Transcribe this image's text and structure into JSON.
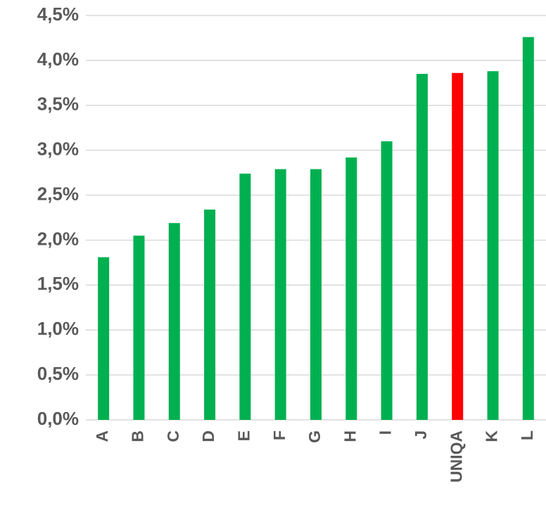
{
  "chart_data": {
    "type": "bar",
    "categories": [
      "A",
      "B",
      "C",
      "D",
      "E",
      "F",
      "G",
      "H",
      "I",
      "J",
      "UNIQA",
      "K",
      "L"
    ],
    "values": [
      1.81,
      2.05,
      2.19,
      2.34,
      2.74,
      2.79,
      2.79,
      2.92,
      3.1,
      3.85,
      3.86,
      3.88,
      4.26
    ],
    "colors": [
      "#00b050",
      "#00b050",
      "#00b050",
      "#00b050",
      "#00b050",
      "#00b050",
      "#00b050",
      "#00b050",
      "#00b050",
      "#00b050",
      "#ff0000",
      "#00b050",
      "#00b050"
    ],
    "ylim": [
      0,
      4.5
    ],
    "yticks": [
      {
        "value": 0,
        "label": "0,0%"
      },
      {
        "value": 0.5,
        "label": "0,5%"
      },
      {
        "value": 1,
        "label": "1,0%"
      },
      {
        "value": 1.5,
        "label": "1,5%"
      },
      {
        "value": 2,
        "label": "2,0%"
      },
      {
        "value": 2.5,
        "label": "2,5%"
      },
      {
        "value": 3,
        "label": "3,0%"
      },
      {
        "value": 3.5,
        "label": "3,5%"
      },
      {
        "value": 4,
        "label": "4,0%"
      },
      {
        "value": 4.5,
        "label": "4,5%"
      }
    ],
    "grid": true
  }
}
